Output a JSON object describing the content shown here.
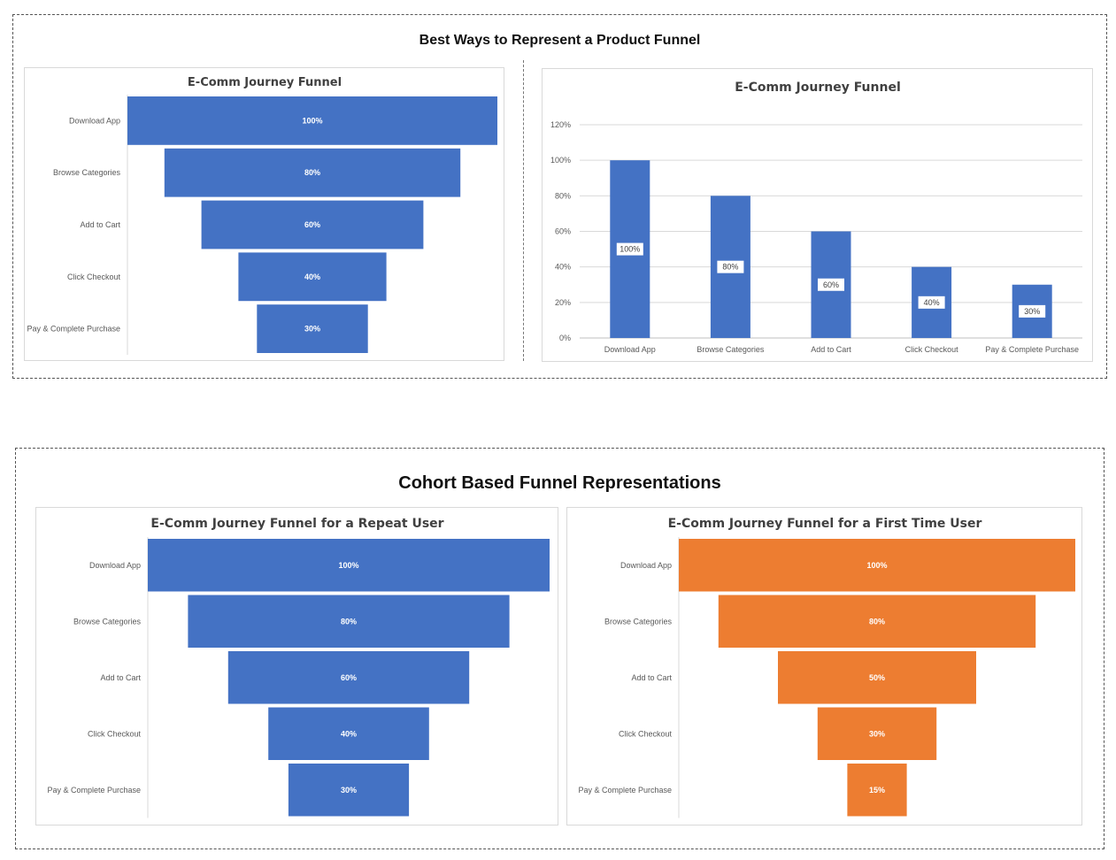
{
  "top_section": {
    "title": "Best Ways to Represent a Product Funnel"
  },
  "bottom_section": {
    "title": "Cohort Based Funnel Representations"
  },
  "colors": {
    "blue": "#4472C4",
    "orange": "#ED7D31"
  },
  "chart_data": [
    {
      "type": "bar",
      "orientation": "horizontal-funnel",
      "title": "E-Comm Journey Funnel",
      "categories": [
        "Download App",
        "Browse Categories",
        "Add to Cart",
        "Click Checkout",
        "Pay & Complete Purchase"
      ],
      "values": [
        100,
        80,
        60,
        40,
        30
      ],
      "labels": [
        "100%",
        "80%",
        "60%",
        "40%",
        "30%"
      ],
      "color": "#4472C4"
    },
    {
      "type": "bar",
      "orientation": "vertical",
      "title": "E-Comm Journey Funnel",
      "categories": [
        "Download App",
        "Browse Categories",
        "Add to Cart",
        "Click Checkout",
        "Pay & Complete Purchase"
      ],
      "values": [
        100,
        80,
        60,
        40,
        30
      ],
      "labels": [
        "100%",
        "80%",
        "60%",
        "40%",
        "30%"
      ],
      "ylim": [
        0,
        120
      ],
      "yticks": [
        "0%",
        "20%",
        "40%",
        "60%",
        "80%",
        "100%",
        "120%"
      ],
      "grid": true,
      "color": "#4472C4"
    },
    {
      "type": "bar",
      "orientation": "horizontal-funnel",
      "title": "E-Comm Journey Funnel for a Repeat User",
      "categories": [
        "Download App",
        "Browse Categories",
        "Add to Cart",
        "Click Checkout",
        "Pay & Complete Purchase"
      ],
      "values": [
        100,
        80,
        60,
        40,
        30
      ],
      "labels": [
        "100%",
        "80%",
        "60%",
        "40%",
        "30%"
      ],
      "color": "#4472C4"
    },
    {
      "type": "bar",
      "orientation": "horizontal-funnel",
      "title": "E-Comm Journey Funnel for a First Time User",
      "categories": [
        "Download App",
        "Browse Categories",
        "Add to Cart",
        "Click Checkout",
        "Pay & Complete Purchase"
      ],
      "values": [
        100,
        80,
        50,
        30,
        15
      ],
      "labels": [
        "100%",
        "80%",
        "50%",
        "30%",
        "15%"
      ],
      "color": "#ED7D31"
    }
  ]
}
